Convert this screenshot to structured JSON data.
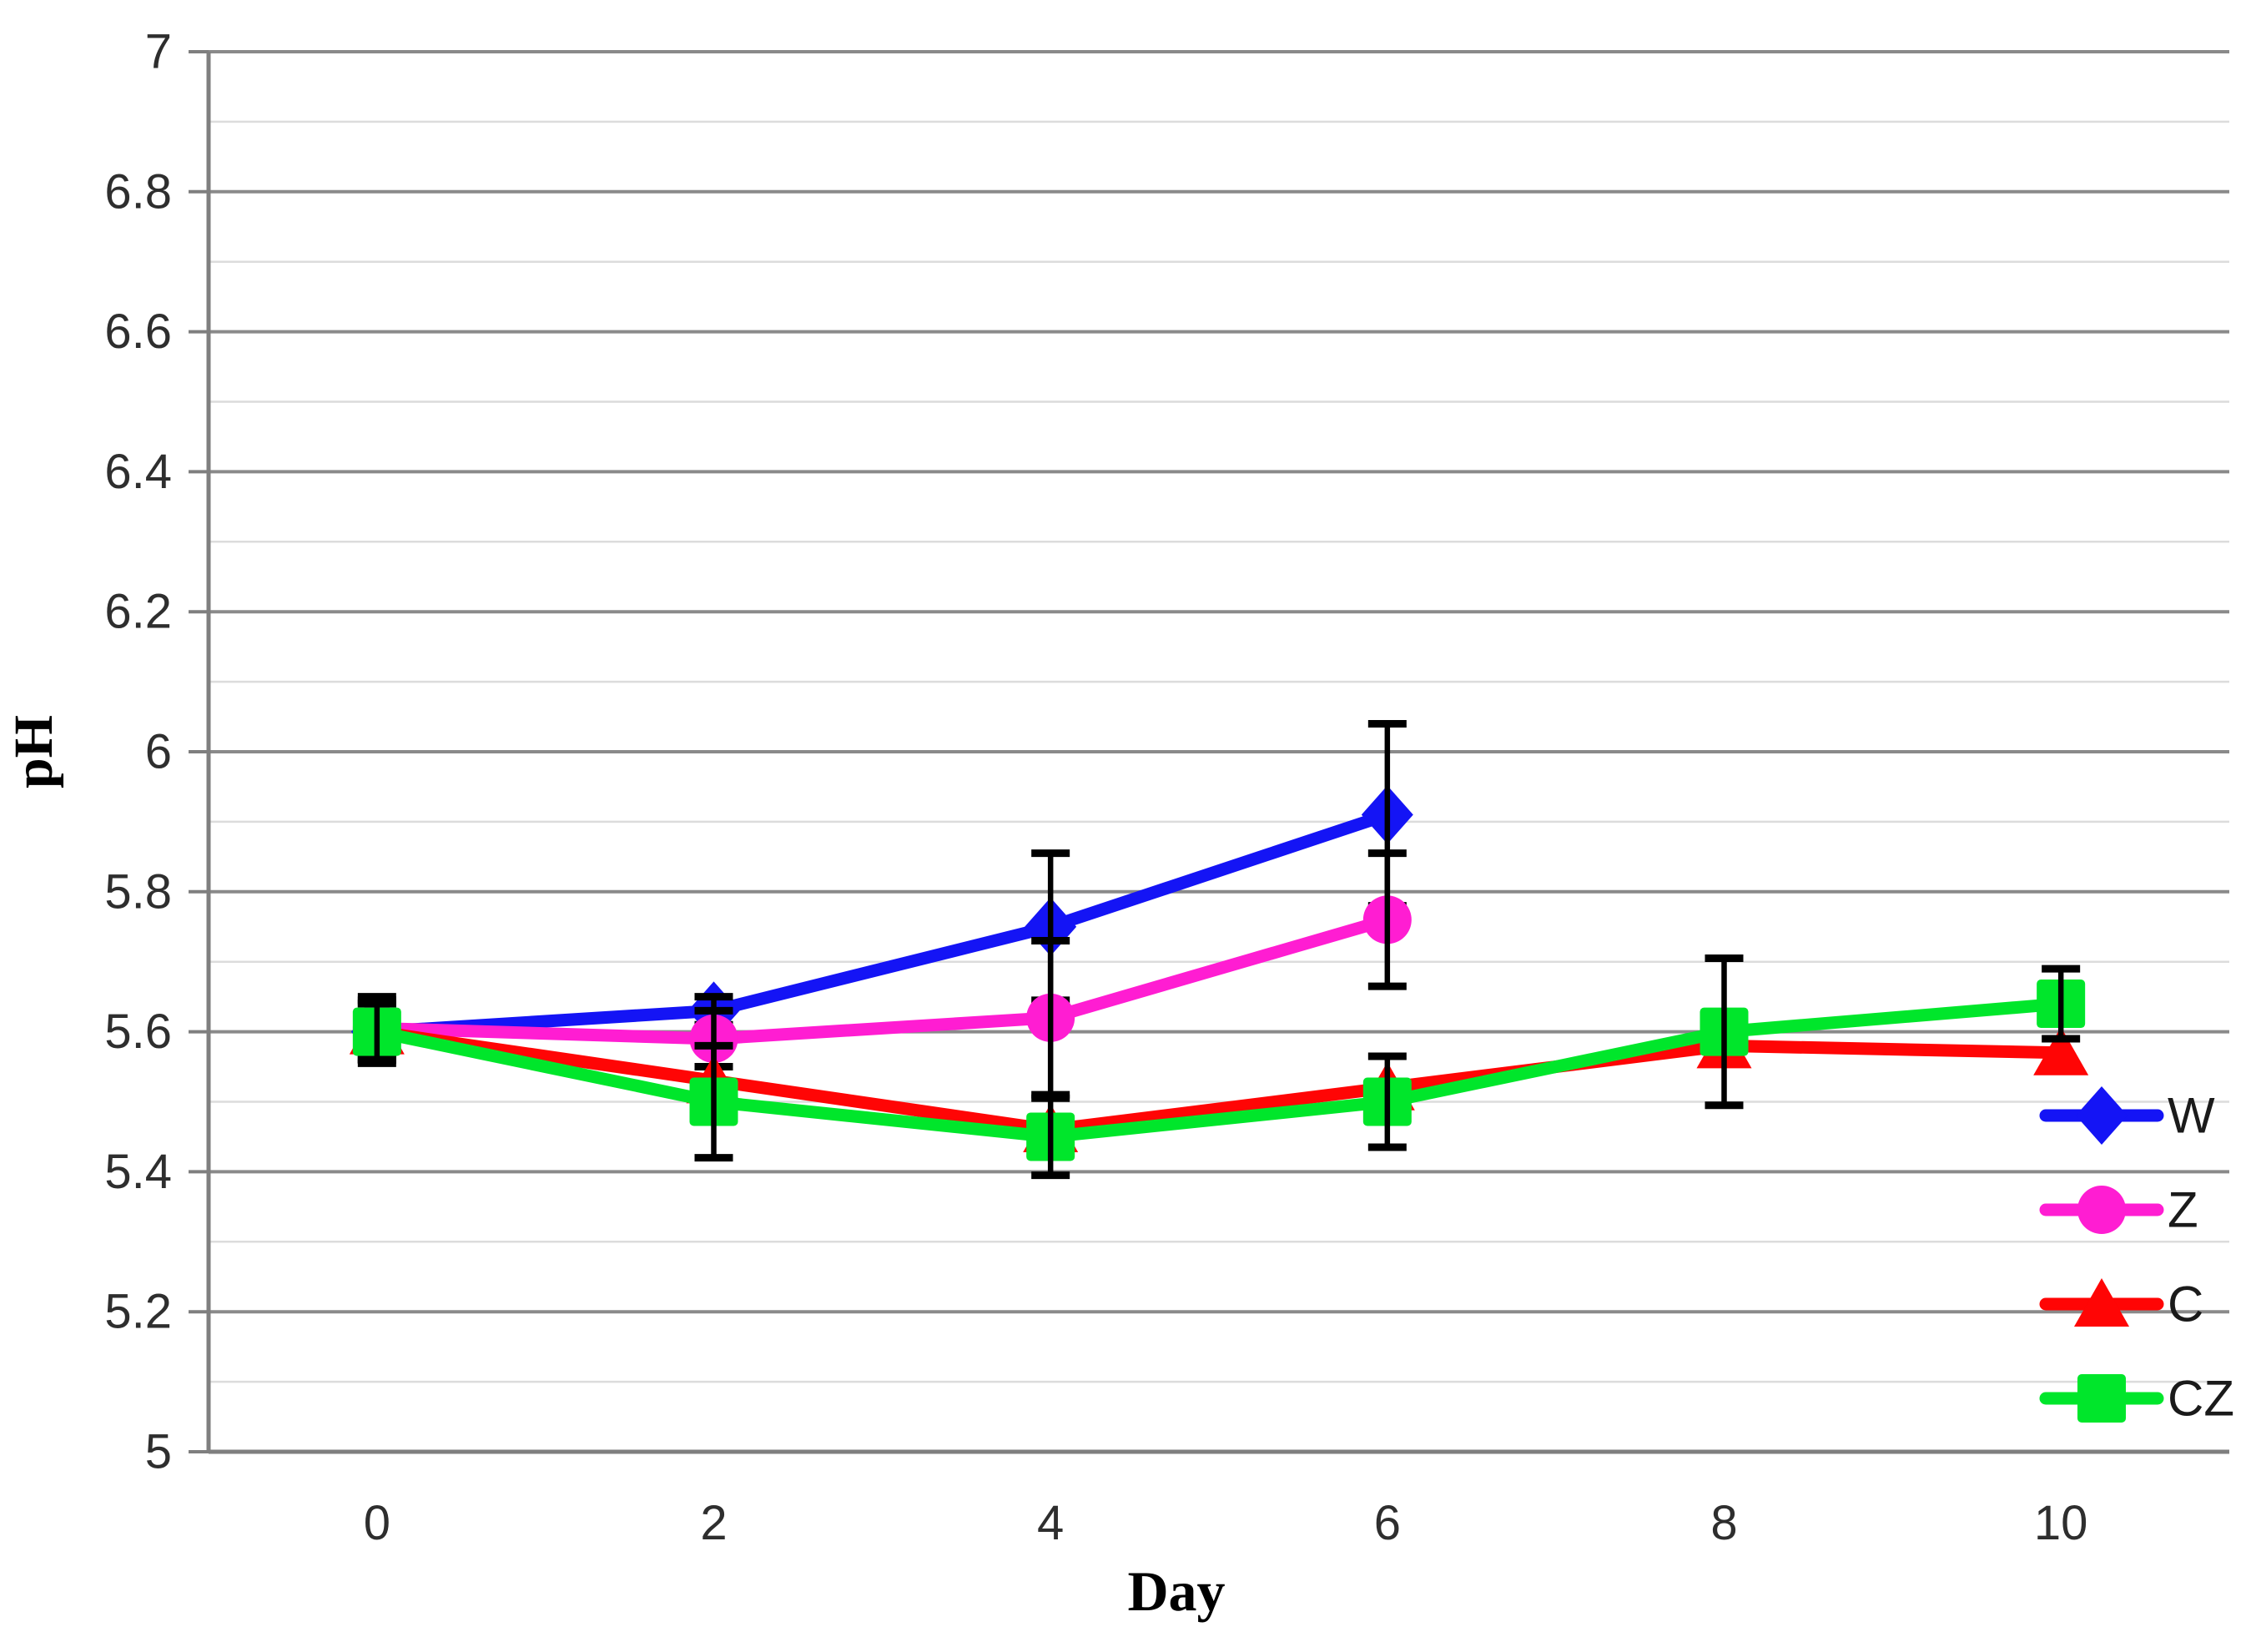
{
  "chart_data": {
    "type": "line",
    "title": "",
    "xlabel": "Day",
    "ylabel": "pH",
    "x_categories": [
      "0",
      "2",
      "4",
      "6",
      "8",
      "10"
    ],
    "x_values": [
      0,
      2,
      4,
      6,
      8,
      10
    ],
    "ylim": [
      5.0,
      7.0
    ],
    "y_major_step": 0.2,
    "y_minor_step": 0.1,
    "y_tick_labels": [
      "5",
      "5.2",
      "5.4",
      "5.6",
      "5.8",
      "6",
      "6.2",
      "6.4",
      "6.6",
      "6.8",
      "7"
    ],
    "y_tick_values": [
      5.0,
      5.2,
      5.4,
      5.6,
      5.8,
      6.0,
      6.2,
      6.4,
      6.6,
      6.8,
      7.0
    ],
    "grid": "horizontal, major and minor, on",
    "legend_position": "inside-bottom-right",
    "series": [
      {
        "name": "W",
        "color": "#1414f5",
        "marker": "diamond",
        "x": [
          0,
          2,
          4,
          6
        ],
        "values": [
          5.6,
          5.63,
          5.75,
          5.91
        ],
        "errors": [
          0.045,
          0.02,
          0.105,
          0.13
        ]
      },
      {
        "name": "Z",
        "color": "#ff1dd2",
        "marker": "circle",
        "x": [
          0,
          2,
          4,
          6
        ],
        "values": [
          5.605,
          5.59,
          5.62,
          5.76
        ],
        "errors": [
          0.045,
          0.04,
          0.11,
          0.095
        ]
      },
      {
        "name": "C",
        "color": "#ff0505",
        "marker": "triangle",
        "x": [
          0,
          2,
          4,
          6,
          8,
          10
        ],
        "values": [
          5.6,
          5.53,
          5.46,
          5.52,
          5.58,
          5.57
        ],
        "errors": [
          0.04,
          0,
          0,
          0,
          0,
          0
        ]
      },
      {
        "name": "CZ",
        "color": "#00e62b",
        "marker": "square",
        "x": [
          0,
          2,
          4,
          6,
          8,
          10
        ],
        "values": [
          5.6,
          5.5,
          5.45,
          5.5,
          5.6,
          5.64
        ],
        "errors": [
          0.04,
          0.08,
          0.055,
          0.065,
          0.105,
          0.05
        ]
      }
    ],
    "error_bar_color": "#000000",
    "colors": {
      "axis": "#7f7f7f",
      "grid_major": "#8a8a8a",
      "grid_minor": "#dcdcdc",
      "tick_text": "#2e2e2e",
      "title_text": "#000000"
    }
  }
}
